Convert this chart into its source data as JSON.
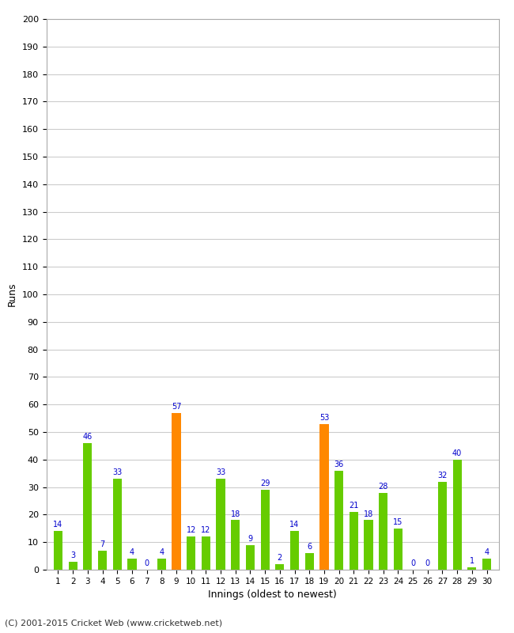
{
  "innings": [
    1,
    2,
    3,
    4,
    5,
    6,
    7,
    8,
    9,
    10,
    11,
    12,
    13,
    14,
    15,
    16,
    17,
    18,
    19,
    20,
    21,
    22,
    23,
    24,
    25,
    26,
    27,
    28,
    29,
    30
  ],
  "runs": [
    14,
    3,
    46,
    7,
    33,
    4,
    0,
    4,
    57,
    12,
    12,
    33,
    18,
    9,
    29,
    2,
    14,
    6,
    53,
    36,
    21,
    18,
    28,
    15,
    0,
    0,
    32,
    40,
    1,
    4
  ],
  "colors": [
    "#66cc00",
    "#66cc00",
    "#66cc00",
    "#66cc00",
    "#66cc00",
    "#66cc00",
    "#66cc00",
    "#66cc00",
    "#ff8800",
    "#66cc00",
    "#66cc00",
    "#66cc00",
    "#66cc00",
    "#66cc00",
    "#66cc00",
    "#66cc00",
    "#66cc00",
    "#66cc00",
    "#ff8800",
    "#66cc00",
    "#66cc00",
    "#66cc00",
    "#66cc00",
    "#66cc00",
    "#66cc00",
    "#66cc00",
    "#66cc00",
    "#66cc00",
    "#66cc00",
    "#66cc00"
  ],
  "xlabel": "Innings (oldest to newest)",
  "ylabel": "Runs",
  "ylim": [
    0,
    200
  ],
  "yticks": [
    0,
    10,
    20,
    30,
    40,
    50,
    60,
    70,
    80,
    90,
    100,
    110,
    120,
    130,
    140,
    150,
    160,
    170,
    180,
    190,
    200
  ],
  "bg_color": "#ffffff",
  "grid_color": "#cccccc",
  "label_color": "#0000cc",
  "footer": "(C) 2001-2015 Cricket Web (www.cricketweb.net)"
}
